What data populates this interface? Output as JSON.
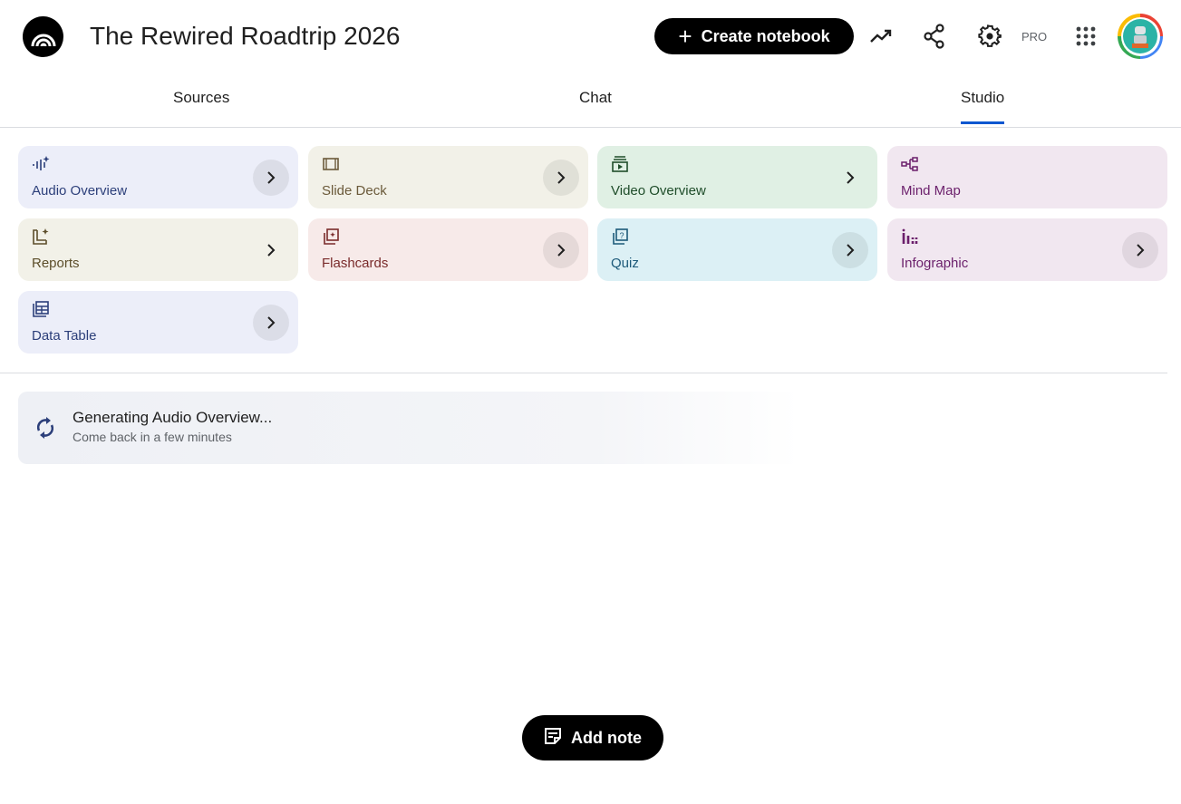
{
  "header": {
    "title": "The Rewired Roadtrip 2026",
    "create_label": "Create notebook",
    "pro_label": "PRO",
    "icons": [
      "notebooklm-logo-icon",
      "analytics-trending-icon",
      "share-icon",
      "settings-gear-icon",
      "apps-grid-icon",
      "avatar"
    ]
  },
  "tabs": [
    {
      "label": "Sources",
      "active": false
    },
    {
      "label": "Chat",
      "active": false
    },
    {
      "label": "Studio",
      "active": true
    }
  ],
  "studio": {
    "cards": [
      {
        "label": "Audio Overview",
        "icon": "audio-waveform-sparkle-icon",
        "bg": "#eceef9",
        "fg": "#2c3f7a"
      },
      {
        "label": "Slide Deck",
        "icon": "slides-icon",
        "bg": "#f2f1e8",
        "fg": "#6b5a3a"
      },
      {
        "label": "Video Overview",
        "icon": "video-icon",
        "bg": "#e0f0e4",
        "fg": "#1f4d2a"
      },
      {
        "label": "Mind Map",
        "icon": "mind-map-icon",
        "bg": "#f1e7f0",
        "fg": "#6b1f6b"
      },
      {
        "label": "Reports",
        "icon": "report-sparkle-icon",
        "bg": "#f2f1e8",
        "fg": "#5c4e2a"
      },
      {
        "label": "Flashcards",
        "icon": "flashcards-icon",
        "bg": "#f7eae9",
        "fg": "#7a2b2b"
      },
      {
        "label": "Quiz",
        "icon": "quiz-icon",
        "bg": "#dcf0f5",
        "fg": "#1d5a7a"
      },
      {
        "label": "Infographic",
        "icon": "infographic-icon",
        "bg": "#f1e7f0",
        "fg": "#6b1f6b"
      },
      {
        "label": "Data Table",
        "icon": "data-table-icon",
        "bg": "#eceef9",
        "fg": "#2c3f7a"
      }
    ],
    "generating": {
      "title": "Generating Audio Overview...",
      "subtitle": "Come back in a few minutes",
      "icon": "sync-icon"
    }
  },
  "footer": {
    "add_note_label": "Add note"
  },
  "accent": "#0b57d0"
}
